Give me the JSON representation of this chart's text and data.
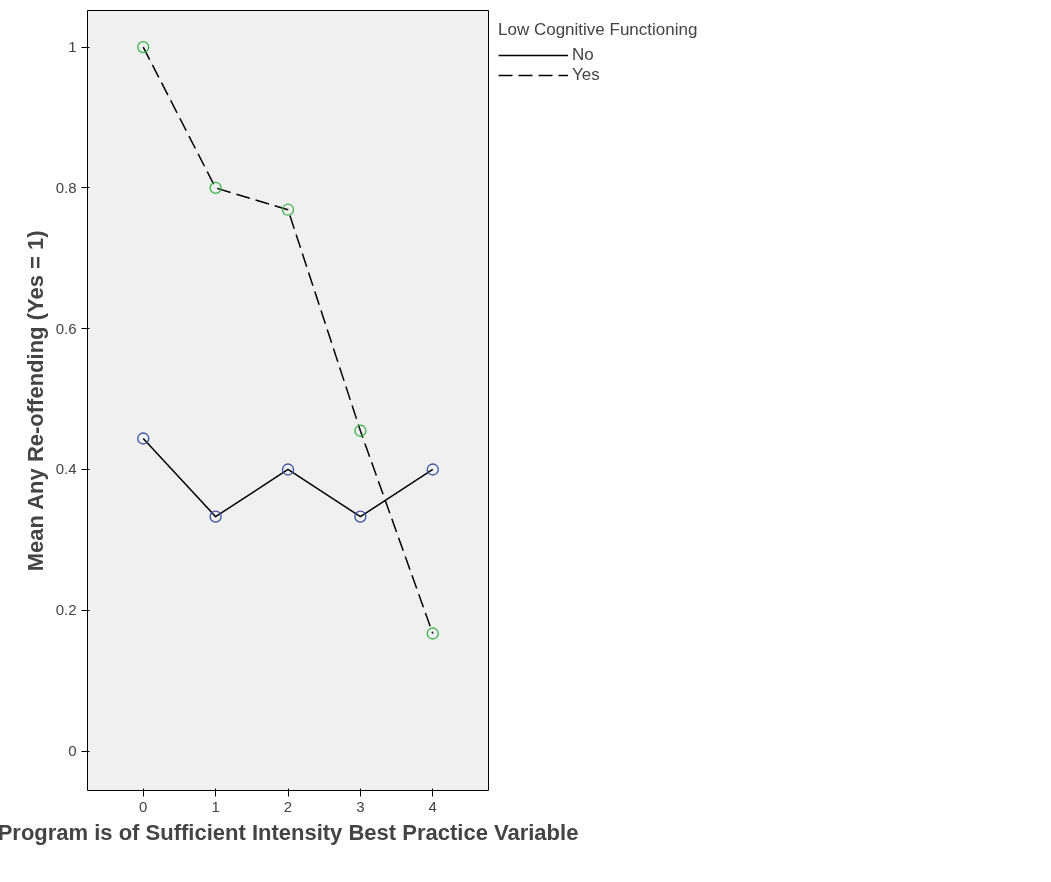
{
  "chart_data": {
    "type": "line",
    "xlabel": "Program is of Sufficient Intensity Best Practice Variable",
    "ylabel": "Mean Any Re-offending (Yes = 1)",
    "legend_title": "Low Cognitive Functioning",
    "x": [
      0,
      1,
      2,
      3,
      4
    ],
    "series": [
      {
        "name": "No",
        "color": "#000000",
        "colors": [
          "#3c4fa8",
          "#3c4fa8",
          "#3c4fa8",
          "#3c4fa8",
          "#3c4fa8"
        ],
        "line_style": "solid",
        "values": [
          0.444,
          0.333,
          0.4,
          0.333,
          0.4
        ]
      },
      {
        "name": "Yes",
        "color": "#000000",
        "colors": [
          "#3cb44a",
          "#3cb44a",
          "#3cb44a",
          "#3cb44a",
          "#3cb44a"
        ],
        "line_style": "dashed",
        "values": [
          1,
          0.8,
          0.769,
          0.455,
          0.167
        ]
      }
    ],
    "xlim": [
      -0.77,
      4.77
    ],
    "ylim": [
      -0.056,
      1.052
    ],
    "xticks": [
      0,
      1,
      2,
      3,
      4
    ],
    "yticks": [
      0,
      0.2,
      0.4,
      0.6,
      0.8,
      1
    ],
    "grid": false,
    "legend": "top right",
    "marker": "circle"
  }
}
